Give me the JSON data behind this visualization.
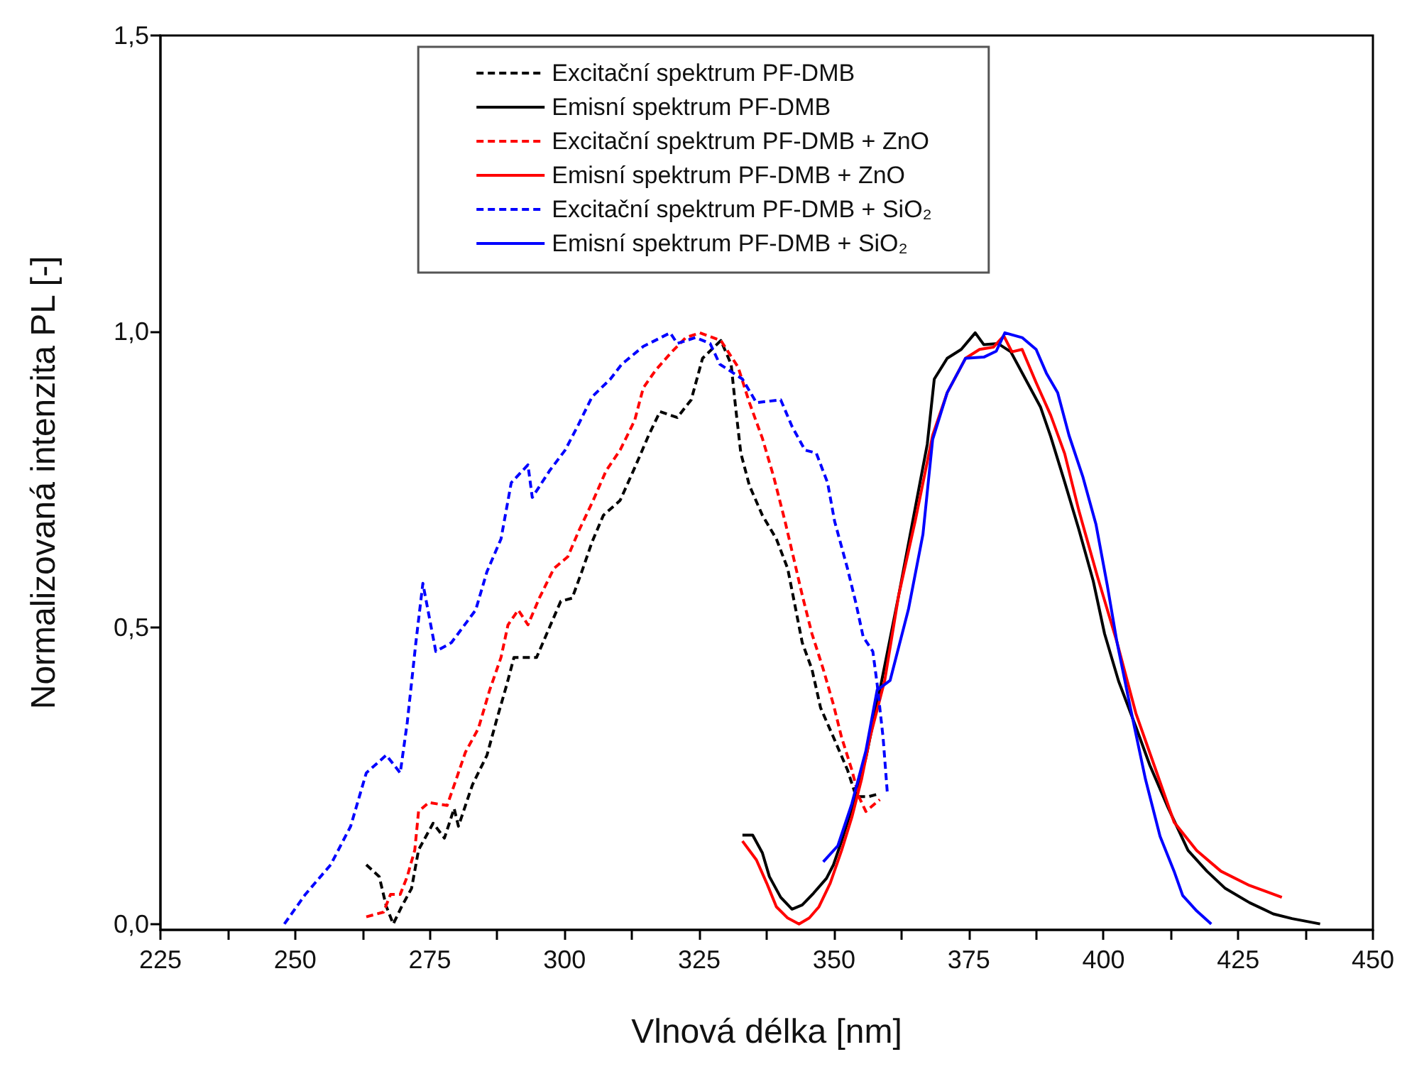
{
  "chart_data": {
    "type": "line",
    "xlabel": "Vlnová délka [nm]",
    "ylabel": "Normalizovaná intenzita PL [-]",
    "xlim": [
      225,
      450
    ],
    "xticks": [
      225,
      {
        "value": 237.5,
        "label": null
      },
      250,
      {
        "value": 262.5,
        "label": null
      },
      275,
      {
        "value": 287.5,
        "label": null
      },
      300,
      {
        "value": 312.5,
        "label": null
      },
      325,
      {
        "value": 337.5,
        "label": null
      },
      350,
      {
        "value": 362.5,
        "label": null
      },
      375,
      {
        "value": 387.5,
        "label": null
      },
      400,
      {
        "value": 412.5,
        "label": null
      },
      425,
      {
        "value": 437.5,
        "label": null
      },
      450
    ],
    "ylim": [
      -0.01,
      1.5
    ],
    "yticks": [
      {
        "value": 0,
        "label": "0,0"
      },
      {
        "value": 0.5,
        "label": "0,5"
      },
      {
        "value": 1,
        "label": "1,0"
      },
      {
        "value": 1.5,
        "label": "1,5"
      }
    ],
    "grid": false,
    "legend": "top",
    "marker": "none",
    "series": [
      {
        "name": "Excitační spektrum PF-DMB",
        "color": "#000000",
        "line_style": "dashed",
        "x": [
          263.2,
          265.6,
          266.9,
          268.2,
          269.8,
          271.6,
          272.9,
          275.6,
          277.7,
          279.5,
          280.3,
          282.9,
          285.6,
          287.4,
          289.3,
          290.6,
          292.7,
          294.8,
          297.4,
          299.3,
          301.4,
          303.2,
          305.1,
          307.2,
          310.3,
          313.0,
          315.6,
          317.7,
          320.9,
          323.5,
          325.6,
          329.0,
          330.9,
          331.7,
          332.7,
          334.3,
          336.7,
          339.3,
          341.4,
          342.7,
          344.1,
          345.9,
          347.5,
          349.9,
          352.5,
          354.1,
          356.4,
          358.5
        ],
        "values": [
          0.1,
          0.08,
          0.03,
          0.0,
          0.03,
          0.06,
          0.125,
          0.17,
          0.145,
          0.195,
          0.165,
          0.235,
          0.285,
          0.345,
          0.405,
          0.45,
          0.45,
          0.45,
          0.505,
          0.545,
          0.55,
          0.595,
          0.645,
          0.69,
          0.715,
          0.77,
          0.825,
          0.865,
          0.855,
          0.885,
          0.955,
          0.985,
          0.945,
          0.875,
          0.795,
          0.74,
          0.69,
          0.65,
          0.6,
          0.54,
          0.475,
          0.43,
          0.365,
          0.315,
          0.26,
          0.215,
          0.215,
          0.22
        ]
      },
      {
        "name": "Emisní spektrum PF-DMB",
        "color": "#000000",
        "line_style": "solid",
        "x": [
          333.0,
          334.9,
          336.7,
          338.0,
          340.1,
          342.2,
          344.1,
          346.2,
          348.6,
          349.9,
          351.4,
          353.3,
          355.9,
          358.5,
          362.0,
          364.6,
          367.3,
          368.6,
          371.0,
          373.6,
          376.2,
          377.8,
          380.4,
          382.8,
          388.3,
          390.2,
          392.8,
          395.4,
          398.1,
          400.2,
          402.8,
          406.0,
          408.6,
          412.0,
          415.7,
          419.2,
          422.6,
          427.1,
          431.5,
          435.0,
          440.2
        ],
        "values": [
          0.15,
          0.15,
          0.12,
          0.08,
          0.045,
          0.025,
          0.032,
          0.052,
          0.077,
          0.1,
          0.14,
          0.195,
          0.28,
          0.395,
          0.555,
          0.68,
          0.81,
          0.92,
          0.955,
          0.97,
          0.998,
          0.978,
          0.98,
          0.966,
          0.873,
          0.823,
          0.746,
          0.667,
          0.579,
          0.49,
          0.41,
          0.333,
          0.268,
          0.196,
          0.124,
          0.089,
          0.06,
          0.036,
          0.017,
          0.009,
          0.0
        ]
      },
      {
        "name": "Excitační spektrum PF-DMB + ZnO",
        "color": "#ff0000",
        "line_style": "dashed",
        "x": [
          263.2,
          266.4,
          267.7,
          269.5,
          270.8,
          272.2,
          272.9,
          274.8,
          278.2,
          280.1,
          281.6,
          284.0,
          286.1,
          288.2,
          289.5,
          291.4,
          293.2,
          295.3,
          298.0,
          300.6,
          302.7,
          305.3,
          307.7,
          310.3,
          313.0,
          314.6,
          316.9,
          319.8,
          322.5,
          325.1,
          329.0,
          332.2,
          334.3,
          336.7,
          338.8,
          340.9,
          342.7,
          344.1,
          345.9,
          348.0,
          349.9,
          351.4,
          353.3,
          354.6,
          355.9,
          358.5
        ],
        "values": [
          0.012,
          0.02,
          0.05,
          0.05,
          0.08,
          0.125,
          0.19,
          0.205,
          0.2,
          0.25,
          0.29,
          0.33,
          0.395,
          0.45,
          0.505,
          0.53,
          0.505,
          0.55,
          0.6,
          0.62,
          0.665,
          0.715,
          0.765,
          0.8,
          0.85,
          0.905,
          0.935,
          0.965,
          0.99,
          0.998,
          0.985,
          0.94,
          0.88,
          0.82,
          0.755,
          0.68,
          0.61,
          0.555,
          0.49,
          0.43,
          0.37,
          0.315,
          0.26,
          0.215,
          0.19,
          0.21
        ]
      },
      {
        "name": "Emisní spektrum PF-DMB + ZnO",
        "color": "#ff0000",
        "line_style": "solid",
        "x": [
          333.0,
          335.6,
          337.5,
          339.3,
          341.4,
          343.5,
          345.4,
          347.2,
          349.3,
          351.4,
          353.3,
          355.1,
          356.7,
          359.4,
          362.0,
          365.1,
          368.3,
          371.0,
          374.4,
          377.0,
          379.6,
          381.5,
          383.0,
          384.9,
          387.5,
          390.2,
          392.8,
          395.4,
          398.9,
          402.5,
          406.0,
          409.4,
          413.1,
          417.3,
          421.8,
          427.1,
          433.1
        ],
        "values": [
          0.14,
          0.108,
          0.069,
          0.029,
          0.01,
          0.0,
          0.01,
          0.029,
          0.069,
          0.124,
          0.18,
          0.244,
          0.316,
          0.411,
          0.555,
          0.682,
          0.825,
          0.897,
          0.955,
          0.97,
          0.974,
          0.993,
          0.966,
          0.97,
          0.914,
          0.859,
          0.794,
          0.699,
          0.586,
          0.476,
          0.356,
          0.268,
          0.172,
          0.124,
          0.089,
          0.065,
          0.045
        ]
      },
      {
        "name": "Excitační spektrum PF-DMB + SiO₂",
        "color": "#0000ff",
        "line_style": "dashed",
        "x": [
          248.0,
          251.9,
          256.6,
          260.3,
          263.2,
          266.9,
          269.5,
          270.8,
          272.4,
          273.7,
          276.1,
          279.0,
          283.5,
          285.6,
          288.2,
          290.1,
          293.2,
          294.0,
          297.2,
          300.1,
          302.4,
          305.1,
          308.5,
          310.6,
          314.6,
          319.6,
          320.9,
          324.3,
          327.0,
          328.8,
          333.0,
          335.6,
          340.1,
          342.2,
          344.6,
          346.7,
          348.8,
          350.1,
          352.5,
          354.1,
          355.4,
          357.2,
          358.0,
          359.1,
          359.9
        ],
        "values": [
          0.0,
          0.05,
          0.1,
          0.165,
          0.255,
          0.285,
          0.255,
          0.34,
          0.475,
          0.575,
          0.46,
          0.475,
          0.53,
          0.595,
          0.65,
          0.745,
          0.775,
          0.72,
          0.765,
          0.8,
          0.84,
          0.89,
          0.92,
          0.945,
          0.975,
          0.998,
          0.98,
          0.99,
          0.98,
          0.945,
          0.92,
          0.88,
          0.885,
          0.84,
          0.8,
          0.795,
          0.745,
          0.68,
          0.6,
          0.54,
          0.485,
          0.46,
          0.405,
          0.315,
          0.22
        ]
      },
      {
        "name": "Emisní spektrum PF-DMB + SiO₂",
        "color": "#0000ff",
        "line_style": "solid",
        "x": [
          348.0,
          350.7,
          353.3,
          355.9,
          358.0,
          360.4,
          363.8,
          366.5,
          368.3,
          371.0,
          374.4,
          377.8,
          380.1,
          381.7,
          384.9,
          387.5,
          389.4,
          391.5,
          393.6,
          396.2,
          398.6,
          400.7,
          402.5,
          405.2,
          407.8,
          410.5,
          413.1,
          414.7,
          417.3,
          420.0
        ],
        "values": [
          0.105,
          0.132,
          0.203,
          0.292,
          0.395,
          0.411,
          0.531,
          0.658,
          0.818,
          0.897,
          0.955,
          0.957,
          0.967,
          0.998,
          0.99,
          0.97,
          0.93,
          0.897,
          0.825,
          0.754,
          0.675,
          0.572,
          0.476,
          0.356,
          0.244,
          0.148,
          0.089,
          0.048,
          0.022,
          0.0
        ]
      }
    ]
  }
}
